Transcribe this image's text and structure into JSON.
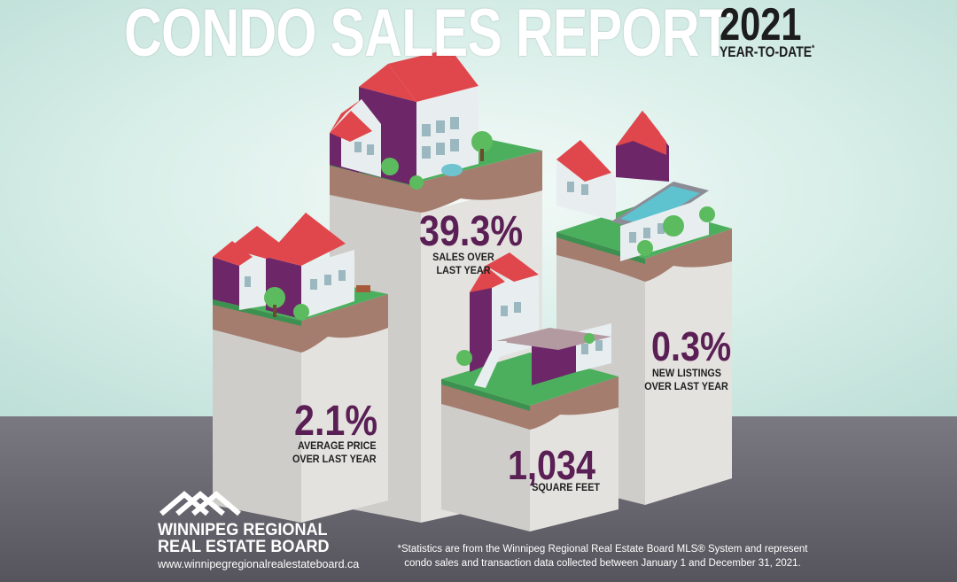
{
  "header": {
    "title": "CONDO SALES REPORT",
    "year": "2021",
    "subtitle": "YEAR-TO-DATE",
    "asterisk": "*"
  },
  "stats": {
    "sales": {
      "value": "39.3%",
      "label_line1": "SALES OVER",
      "label_line2": "LAST YEAR"
    },
    "average_price": {
      "value": "2.1%",
      "label_line1": "AVERAGE PRICE",
      "label_line2": "OVER LAST YEAR"
    },
    "square_feet": {
      "value": "1,034",
      "label_line1": "SQUARE FEET"
    },
    "new_listings": {
      "value": "0.3%",
      "label_line1": "NEW LISTINGS",
      "label_line2": "OVER LAST YEAR"
    }
  },
  "logo": {
    "icon": "roof-chevrons-icon",
    "line1": "WINNIPEG REGIONAL",
    "line2": "REAL ESTATE BOARD",
    "url": "www.winnipegregionalrealestateboard.ca"
  },
  "footnote": {
    "line1": "*Statistics are from the Winnipeg Regional Real Estate Board MLS® System and represent",
    "line2": "condo sales and transaction data collected between January 1 and December 31, 2021."
  },
  "colors": {
    "sky": "#d6ece6",
    "ground": "#67656f",
    "roof": "#e0474c",
    "wall_purple": "#6d2768",
    "wall_light": "#e9eef0",
    "grass": "#4aa55b",
    "soil": "#9b7a6b",
    "pillar": "#dcdad7",
    "accent_text": "#5a1f55"
  }
}
